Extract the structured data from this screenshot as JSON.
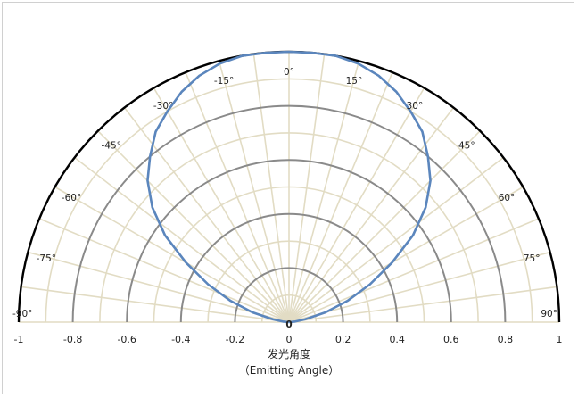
{
  "chart_data": {
    "type": "line",
    "projection": "polar-semicircle",
    "xlabel": "发光角度",
    "xlabel_sub": "（Emitting Angle）",
    "x_ticks": [
      "-1",
      "-0.8",
      "-0.6",
      "-0.4",
      "-0.2",
      "0",
      "0.2",
      "0.4",
      "0.6",
      "0.8",
      "1"
    ],
    "xlim": [
      -1,
      1
    ],
    "center_label": "0",
    "angle_labels": [
      {
        "angle": -90,
        "text": "-90°"
      },
      {
        "angle": -75,
        "text": "-75°"
      },
      {
        "angle": -60,
        "text": "-60°"
      },
      {
        "angle": -45,
        "text": "-45°"
      },
      {
        "angle": -30,
        "text": "-30°"
      },
      {
        "angle": -15,
        "text": "-15°"
      },
      {
        "angle": 0,
        "text": "0°"
      },
      {
        "angle": 15,
        "text": "15°"
      },
      {
        "angle": 30,
        "text": "30°"
      },
      {
        "angle": 45,
        "text": "45°"
      },
      {
        "angle": 60,
        "text": "60°"
      },
      {
        "angle": 75,
        "text": "75°"
      },
      {
        "angle": 90,
        "text": "90°"
      }
    ],
    "rings_major": [
      0.2,
      0.4,
      0.6,
      0.8
    ],
    "rings_minor": [
      0.1,
      0.3,
      0.5,
      0.7,
      0.9
    ],
    "spoke_step_deg": 7.5,
    "grid": true,
    "series": [
      {
        "color": "#5b86bd",
        "angles_deg": [
          -90,
          -85,
          -80,
          -75,
          -70,
          -65,
          -60,
          -55,
          -50,
          -45,
          -40,
          -35,
          -30,
          -25,
          -20,
          -15,
          -10,
          -5,
          0,
          5,
          10,
          15,
          20,
          25,
          30,
          35,
          40,
          45,
          50,
          55,
          60,
          65,
          70,
          75,
          80,
          85,
          90
        ],
        "values": [
          0,
          0.02,
          0.06,
          0.14,
          0.23,
          0.33,
          0.44,
          0.56,
          0.66,
          0.74,
          0.8,
          0.86,
          0.9,
          0.94,
          0.97,
          0.99,
          1.0,
          1.0,
          1.0,
          1.0,
          1.0,
          0.99,
          0.97,
          0.94,
          0.9,
          0.86,
          0.8,
          0.74,
          0.66,
          0.56,
          0.44,
          0.33,
          0.23,
          0.14,
          0.06,
          0.02,
          0
        ]
      }
    ],
    "colors": {
      "outer_arc": "#000000",
      "major_ring": "#8a8a8a",
      "minor_grid": "#e2dcc4",
      "curve": "#5b86bd"
    }
  }
}
